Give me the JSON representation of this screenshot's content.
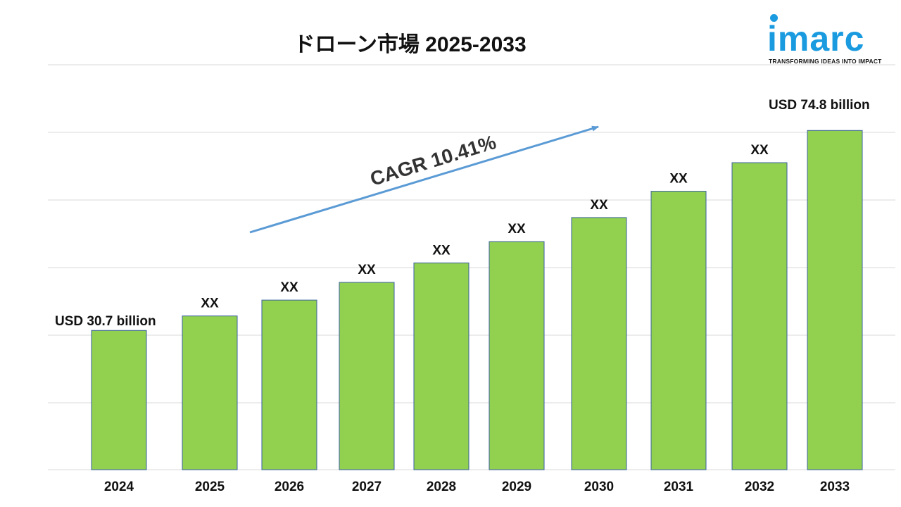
{
  "title": "ドローン市場 2025-2033",
  "logo": {
    "text": "imarc",
    "tagline": "TRANSFORMING IDEAS INTO IMPACT",
    "color": "#1a9be0"
  },
  "cagr_label": "CAGR 10.41%",
  "colors": {
    "bar": "#92d050",
    "arrow": "#5b9bd5"
  },
  "chart_data": {
    "type": "bar",
    "title": "ドローン市場 2025-2033",
    "categories": [
      "2024",
      "2025",
      "2026",
      "2027",
      "2028",
      "2029",
      "2030",
      "2031",
      "2032",
      "2033"
    ],
    "values": [
      30.7,
      33.9,
      37.4,
      41.3,
      45.6,
      50.3,
      55.6,
      61.4,
      67.7,
      74.8
    ],
    "data_labels": [
      "USD 30.7 billion",
      "XX",
      "XX",
      "XX",
      "XX",
      "XX",
      "XX",
      "XX",
      "XX",
      "USD 74.8 billion"
    ],
    "ylim": [
      0,
      86
    ],
    "grid": true,
    "legend": "none"
  }
}
